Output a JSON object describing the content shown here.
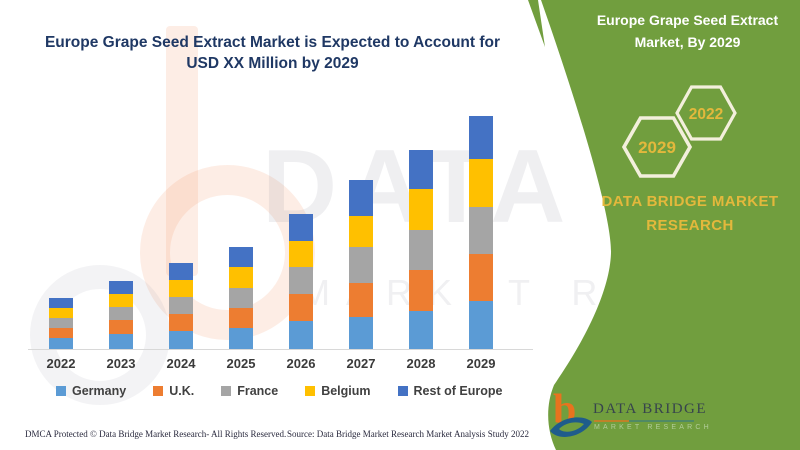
{
  "header": {
    "title": "Europe Grape Seed Extract Market is Expected to Account for USD XX Million by 2029"
  },
  "chart_data": {
    "type": "bar",
    "stacked": true,
    "title": "Europe Grape Seed Extract Market is Expected to Account for USD XX Million by 2029",
    "xlabel": "",
    "ylabel": "",
    "value_axis_note": "no value axis shown; values are relative units estimated from bar heights (USD XX Million)",
    "grid": false,
    "legend_position": "bottom",
    "categories": [
      "2022",
      "2023",
      "2024",
      "2025",
      "2026",
      "2027",
      "2028",
      "2029"
    ],
    "series": [
      {
        "name": "Germany",
        "color": "#5B9BD5",
        "values": [
          11,
          15,
          18,
          21,
          28,
          32,
          38,
          48
        ]
      },
      {
        "name": "U.K.",
        "color": "#ED7D31",
        "values": [
          10,
          14,
          17,
          20,
          27,
          34,
          41,
          47
        ]
      },
      {
        "name": "France",
        "color": "#A5A5A5",
        "values": [
          10,
          13,
          17,
          20,
          27,
          36,
          40,
          47
        ]
      },
      {
        "name": "Belgium",
        "color": "#FFC000",
        "values": [
          10,
          13,
          17,
          21,
          26,
          31,
          41,
          48
        ]
      },
      {
        "name": "Rest of Europe",
        "color": "#4472C4",
        "values": [
          10,
          13,
          17,
          20,
          27,
          36,
          39,
          43
        ]
      }
    ],
    "totals": [
      51,
      68,
      86,
      102,
      135,
      169,
      199,
      233
    ]
  },
  "side_panel": {
    "title": "Europe Grape Seed Extract Market, By 2029",
    "hexagons": [
      {
        "label": "2029"
      },
      {
        "label": "2022"
      }
    ],
    "brand_text": "DATA BRIDGE MARKET RESEARCH",
    "green": "#719E3E",
    "gold": "#E3B83C",
    "hex_stroke": "#F3EFDC"
  },
  "logo": {
    "name": "DATA BRIDGE",
    "tagline": "MARKET RESEARCH",
    "icon": "data-bridge-b-swoosh-icon",
    "orange": "#E8731E",
    "blue": "#1F5C8B"
  },
  "watermark": {
    "text_large": "DATA BRIDGE",
    "text_small": "MARKET RESE"
  },
  "footer": {
    "left": "DMCA Protected © Data Bridge Market Research- All Rights Reserved.",
    "right": "Source: Data Bridge Market Research Market Analysis Study 2022"
  }
}
